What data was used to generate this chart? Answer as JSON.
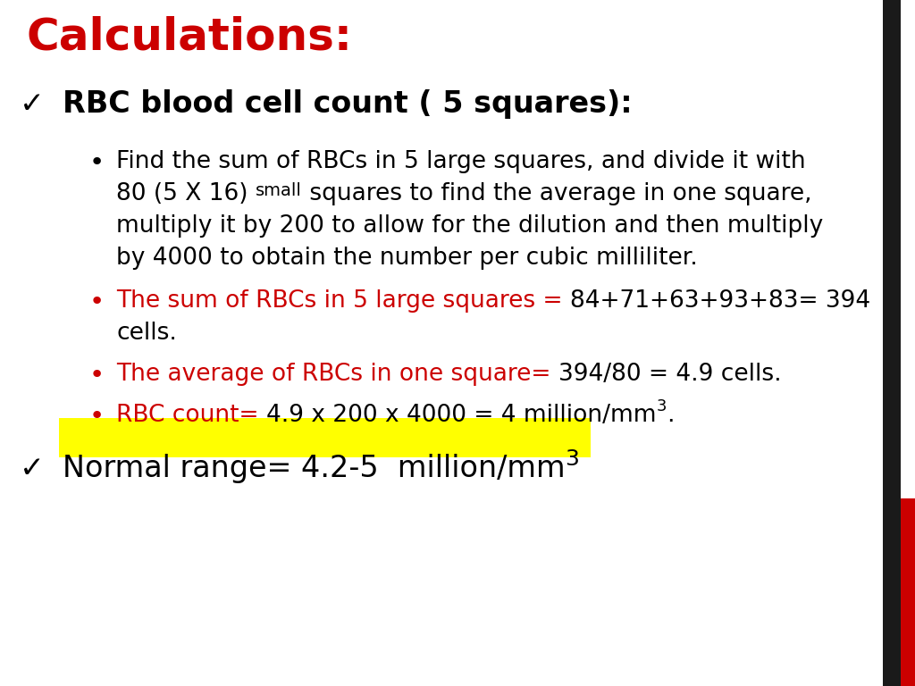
{
  "background_color": "#ffffff",
  "title": "Calculations:",
  "title_color": "#cc0000",
  "title_fontsize": 36,
  "heading_text": "RBC blood cell count ( 5 squares):",
  "heading_fontsize": 24,
  "body_fontsize": 19,
  "red_color": "#cc0000",
  "black_color": "#000000",
  "yellow_color": "#ffff00",
  "dark_bar_color": "#1a1a1a",
  "red_bar_color": "#cc0000",
  "line1_parts": [
    {
      "text": "Find the sum of RBCs in 5 large squares, and divide it with",
      "color": "#000000",
      "size": 19
    },
    {
      "text": "80 (5 X 16) ",
      "color": "#000000",
      "size": 19
    },
    {
      "text": "small",
      "color": "#000000",
      "size": 14
    },
    {
      "text": " squares to find the average in one square,",
      "color": "#000000",
      "size": 19
    },
    {
      "text": "multiply it by 200 to allow for the dilution and then multiply",
      "color": "#000000",
      "size": 19
    },
    {
      "text": "by 4000 to obtain the number per cubic milliliter.",
      "color": "#000000",
      "size": 19
    }
  ],
  "bullet2_red": "The sum of RBCs in 5 large squares = ",
  "bullet2_black": "84+71+63+93+83= 394",
  "bullet2_cont": "cells.",
  "bullet3_red": "The average of RBCs in one square= ",
  "bullet3_black": "394/80 = 4.9 cells.",
  "bullet4_red": "RBC count= ",
  "bullet4_black": "4.9 x 200 x 4000 = 4 million/mm",
  "bullet4_super": "3",
  "bullet4_end": ".",
  "normal_text": "Normal range= 4.2-5  million/mm",
  "normal_super": "3"
}
